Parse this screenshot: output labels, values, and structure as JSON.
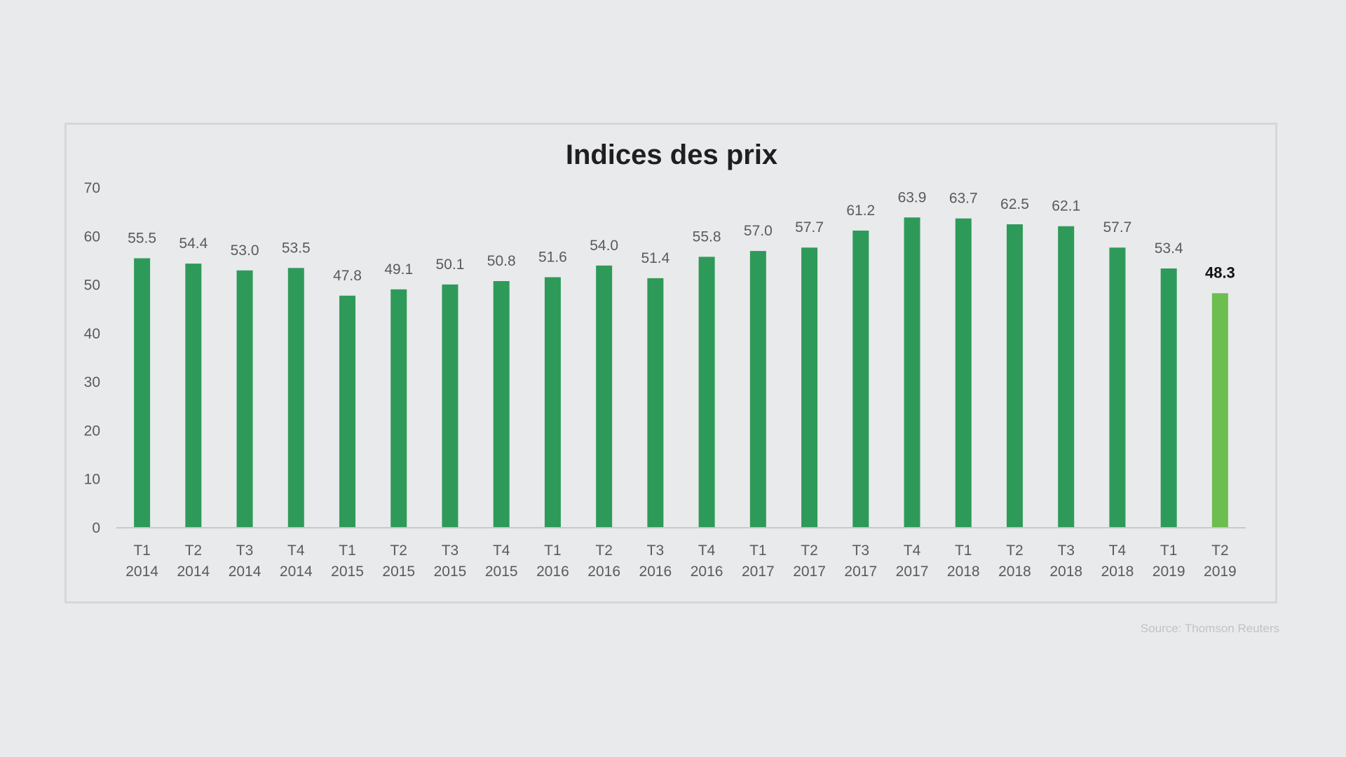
{
  "chart_data": {
    "type": "bar",
    "title": "Indices des prix",
    "categories": [
      [
        "T1",
        "2014"
      ],
      [
        "T2",
        "2014"
      ],
      [
        "T3",
        "2014"
      ],
      [
        "T4",
        "2014"
      ],
      [
        "T1",
        "2015"
      ],
      [
        "T2",
        "2015"
      ],
      [
        "T3",
        "2015"
      ],
      [
        "T4",
        "2015"
      ],
      [
        "T1",
        "2016"
      ],
      [
        "T2",
        "2016"
      ],
      [
        "T3",
        "2016"
      ],
      [
        "T4",
        "2016"
      ],
      [
        "T1",
        "2017"
      ],
      [
        "T2",
        "2017"
      ],
      [
        "T3",
        "2017"
      ],
      [
        "T4",
        "2017"
      ],
      [
        "T1",
        "2018"
      ],
      [
        "T2",
        "2018"
      ],
      [
        "T3",
        "2018"
      ],
      [
        "T4",
        "2018"
      ],
      [
        "T1",
        "2019"
      ],
      [
        "T2",
        "2019"
      ]
    ],
    "values": [
      55.5,
      54.4,
      53.0,
      53.5,
      47.8,
      49.1,
      50.1,
      50.8,
      51.6,
      54.0,
      51.4,
      55.8,
      57.0,
      57.7,
      61.2,
      63.9,
      63.7,
      62.5,
      62.1,
      57.7,
      53.4,
      48.3
    ],
    "data_labels": [
      "55.5",
      "54.4",
      "53.0",
      "53.5",
      "47.8",
      "49.1",
      "50.1",
      "50.8",
      "51.6",
      "54.0",
      "51.4",
      "55.8",
      "57.0",
      "57.7",
      "61.2",
      "63.9",
      "63.7",
      "62.5",
      "62.1",
      "57.7",
      "53.4",
      "48.3"
    ],
    "highlight_index": 21,
    "xlabel": "",
    "ylabel": "",
    "ylim": [
      0,
      70
    ],
    "yticks": [
      "0",
      "10",
      "20",
      "30",
      "40",
      "50",
      "60",
      "70"
    ],
    "grid": false,
    "legend": "none",
    "colors": {
      "bar": "#2e9a5a",
      "highlight": "#6cbe4e",
      "axis": "#c8c8c8"
    }
  },
  "source": "Source: Thomson Reuters"
}
